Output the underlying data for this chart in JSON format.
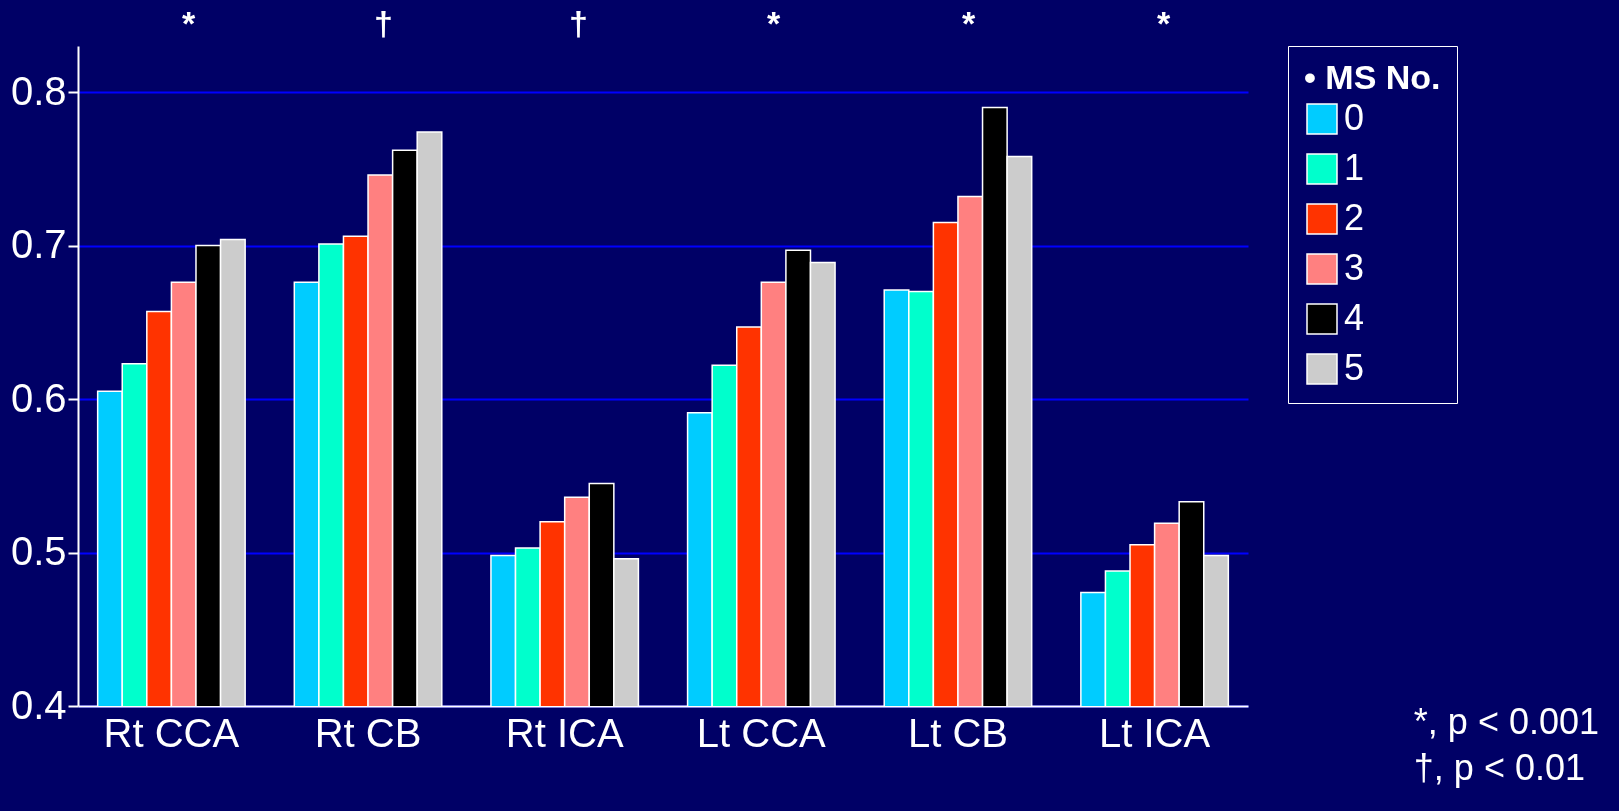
{
  "chart_data": {
    "type": "bar",
    "categories": [
      "Rt  CCA",
      "Rt  CB",
      "Rt  ICA",
      "Lt  CCA",
      "Lt  CB",
      "Lt  ICA"
    ],
    "legend_title": "• MS No.",
    "legend": "right",
    "grid": "y",
    "ylim": [
      0.4,
      0.83
    ],
    "yticks": [
      0.4,
      0.5,
      0.6,
      0.7,
      0.8
    ],
    "series": [
      {
        "name": "0",
        "color": "#00ccff",
        "values": [
          0.605,
          0.676,
          0.498,
          0.591,
          0.671,
          0.474
        ]
      },
      {
        "name": "1",
        "color": "#00ffcc",
        "values": [
          0.623,
          0.701,
          0.503,
          0.622,
          0.67,
          0.488
        ]
      },
      {
        "name": "2",
        "color": "#ff3300",
        "values": [
          0.657,
          0.706,
          0.52,
          0.647,
          0.715,
          0.505
        ]
      },
      {
        "name": "3",
        "color": "#ff8080",
        "values": [
          0.676,
          0.746,
          0.536,
          0.676,
          0.732,
          0.519
        ]
      },
      {
        "name": "4",
        "color": "#000000",
        "values": [
          0.7,
          0.762,
          0.545,
          0.697,
          0.79,
          0.533
        ]
      },
      {
        "name": "5",
        "color": "#cccccc",
        "values": [
          0.704,
          0.774,
          0.496,
          0.689,
          0.758,
          0.498
        ]
      }
    ],
    "annotations": [
      "*",
      "†",
      "†",
      "*",
      "*",
      "*",
      "*, p < 0.001",
      "†, p < 0.01"
    ]
  }
}
